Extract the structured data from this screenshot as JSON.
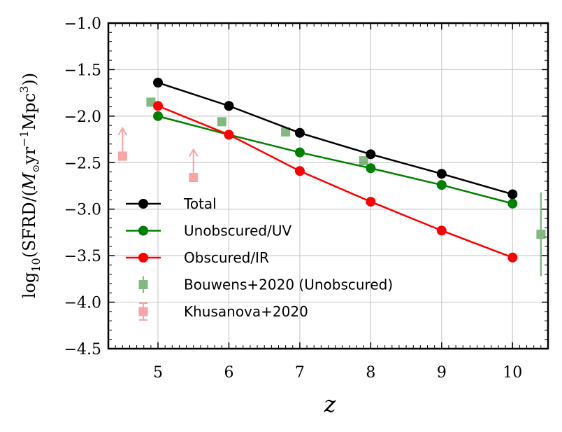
{
  "chart_data": {
    "type": "line",
    "title": "",
    "xlabel": "z",
    "ylabel": "log10(SFRD/(M⊙yr−1Mpc3))",
    "ylabel_parts": {
      "head": "log",
      "sub10": "10",
      "mid": "(SFRD/(",
      "M": "M",
      "sun": "⊙",
      "yr": "yr",
      "exp1": "−1",
      "mpc": "Mpc",
      "exp3": "3",
      "tail": "))"
    },
    "xlim": [
      4.3,
      10.5
    ],
    "ylim": [
      -4.5,
      -1.0
    ],
    "xticks": [
      5,
      6,
      7,
      8,
      9,
      10
    ],
    "xtick_labels": [
      "5",
      "6",
      "7",
      "8",
      "9",
      "10"
    ],
    "yticks": [
      -1.0,
      -1.5,
      -2.0,
      -2.5,
      -3.0,
      -3.5,
      -4.0,
      -4.5
    ],
    "ytick_labels": [
      "−1.0",
      "−1.5",
      "−2.0",
      "−2.5",
      "−3.0",
      "−3.5",
      "−4.0",
      "−4.5"
    ],
    "grid": true,
    "legend_position": "lower-left",
    "series": [
      {
        "name": "Total",
        "color": "#000000",
        "x": [
          5,
          6,
          7,
          8,
          9,
          10
        ],
        "y": [
          -1.64,
          -1.89,
          -2.18,
          -2.41,
          -2.62,
          -2.84
        ]
      },
      {
        "name": "Unobscured/UV",
        "color": "#008000",
        "x": [
          5,
          6,
          7,
          8,
          9,
          10
        ],
        "y": [
          -2.0,
          -2.2,
          -2.39,
          -2.56,
          -2.74,
          -2.94
        ]
      },
      {
        "name": "Obscured/IR",
        "color": "#ff0000",
        "x": [
          5,
          6,
          7,
          8,
          9,
          10
        ],
        "y": [
          -1.89,
          -2.2,
          -2.59,
          -2.92,
          -3.23,
          -3.52
        ]
      }
    ],
    "observations": [
      {
        "name": "Bouwens+2020 (Unobscured)",
        "color": "#2e8b2e",
        "marker": "square",
        "points": [
          {
            "x": 4.9,
            "y": -1.85,
            "yerr": 0.04
          },
          {
            "x": 5.9,
            "y": -2.06,
            "yerr": 0.04
          },
          {
            "x": 6.8,
            "y": -2.17,
            "yerr": 0.04
          },
          {
            "x": 7.9,
            "y": -2.48,
            "yerr": 0.04
          },
          {
            "x": 10.4,
            "y": -3.27,
            "yerr": 0.45
          }
        ]
      },
      {
        "name": "Khusanova+2020",
        "color": "#f26b6b",
        "marker": "square",
        "lower_limit": true,
        "points": [
          {
            "x": 4.5,
            "y": -2.43
          },
          {
            "x": 5.5,
            "y": -2.66
          }
        ]
      }
    ]
  }
}
